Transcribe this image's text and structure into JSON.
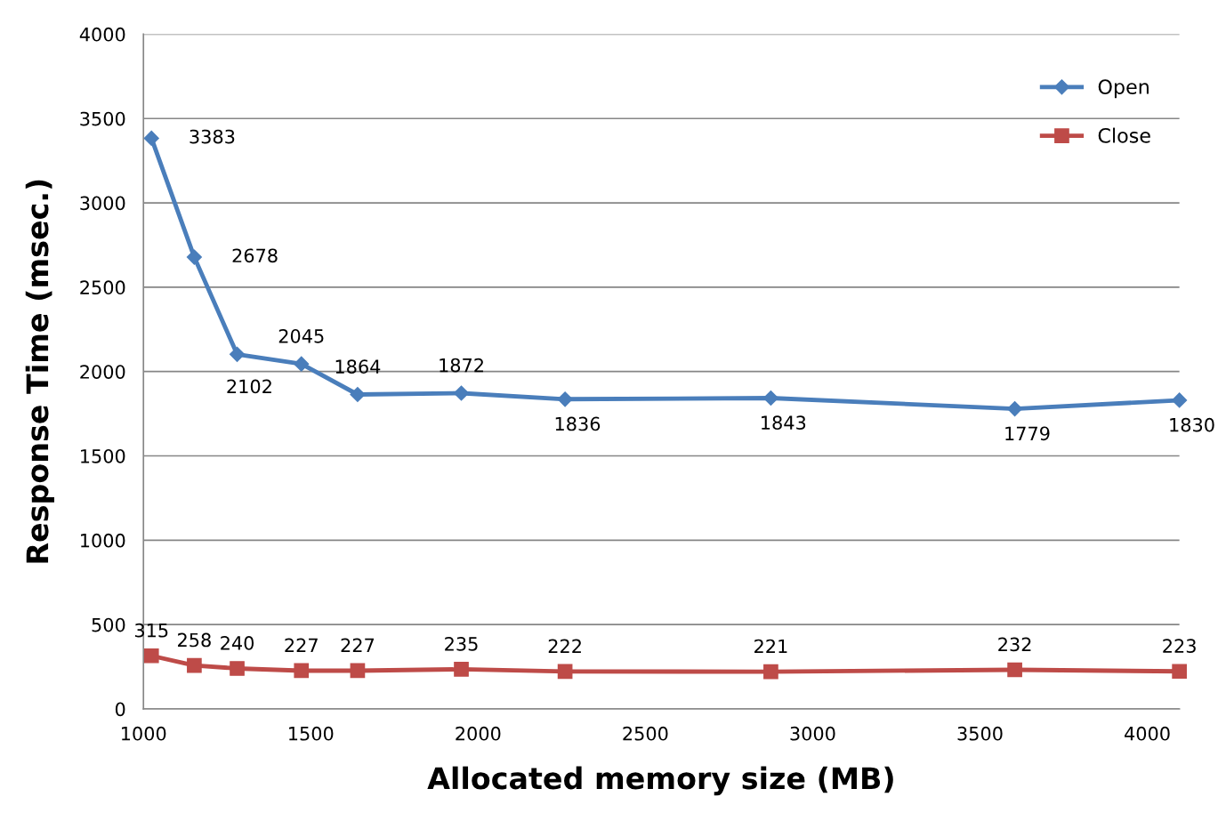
{
  "chart_data": {
    "type": "line",
    "xlabel": "Allocated memory size (MB)",
    "ylabel": "Response Time (msec.)",
    "x": [
      1024,
      1152,
      1280,
      1472,
      1640,
      1950,
      2260,
      2875,
      3604,
      4096
    ],
    "series": [
      {
        "name": "Open",
        "color": "#4a7ebb",
        "marker": "diamond",
        "values": [
          3383,
          2678,
          2102,
          2045,
          1864,
          1872,
          1836,
          1843,
          1779,
          1830
        ]
      },
      {
        "name": "Close",
        "color": "#be4b48",
        "marker": "square",
        "values": [
          315,
          258,
          240,
          227,
          227,
          235,
          222,
          221,
          232,
          223
        ]
      }
    ],
    "xlim": [
      1000,
      4096
    ],
    "xticks": [
      1000,
      1500,
      2000,
      2500,
      3000,
      3500,
      4000
    ],
    "ylim": [
      0,
      4000
    ],
    "yticks": [
      0,
      500,
      1000,
      1500,
      2000,
      2500,
      3000,
      3500,
      4000
    ],
    "grid": "y",
    "legend": "top right",
    "data_labels": true
  }
}
